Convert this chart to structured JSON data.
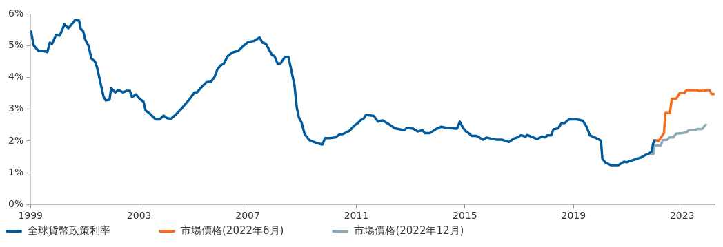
{
  "chart_data": {
    "type": "line",
    "xlim": [
      1999,
      2024.2
    ],
    "xticks": [
      1999,
      2003,
      2007,
      2011,
      2015,
      2019,
      2023
    ],
    "ylim": [
      0,
      6
    ],
    "yticks": [
      {
        "value": 0,
        "label": "0%"
      },
      {
        "value": 1,
        "label": "1%"
      },
      {
        "value": 2,
        "label": "2%"
      },
      {
        "value": 3,
        "label": "3%"
      },
      {
        "value": 4,
        "label": "4%"
      },
      {
        "value": 5,
        "label": "5%"
      },
      {
        "value": 6,
        "label": "6%"
      }
    ],
    "grid": false,
    "legend": "bottom",
    "marker": "none",
    "line_style": "solid",
    "series": [
      {
        "name": "全球貨幣政策利率",
        "color": "#005a9c",
        "x": [
          1999.02,
          1999.12,
          1999.29,
          1999.45,
          1999.62,
          1999.71,
          1999.79,
          1999.94,
          2000.08,
          2000.25,
          2000.39,
          2000.58,
          2000.64,
          2000.79,
          2000.85,
          2000.94,
          2001.02,
          2001.14,
          2001.24,
          2001.37,
          2001.45,
          2001.69,
          2001.77,
          2001.91,
          2001.97,
          2002.12,
          2002.24,
          2002.41,
          2002.53,
          2002.66,
          2002.74,
          2002.88,
          2003.02,
          2003.16,
          2003.24,
          2003.41,
          2003.61,
          2003.76,
          2003.9,
          2004.03,
          2004.18,
          2004.36,
          2004.53,
          2004.69,
          2004.86,
          2005.04,
          2005.13,
          2005.28,
          2005.48,
          2005.65,
          2005.78,
          2005.88,
          2006.01,
          2006.12,
          2006.26,
          2006.44,
          2006.65,
          2006.86,
          2007.02,
          2007.23,
          2007.44,
          2007.54,
          2007.67,
          2007.9,
          2007.98,
          2008.1,
          2008.21,
          2008.37,
          2008.5,
          2008.72,
          2008.81,
          2008.89,
          2008.98,
          2009.1,
          2009.27,
          2009.52,
          2009.75,
          2009.85,
          2010.02,
          2010.22,
          2010.39,
          2010.51,
          2010.75,
          2010.93,
          2011.05,
          2011.16,
          2011.26,
          2011.36,
          2011.64,
          2011.8,
          2011.97,
          2012.22,
          2012.42,
          2012.76,
          2012.86,
          2013.09,
          2013.26,
          2013.44,
          2013.52,
          2013.71,
          2013.92,
          2014.13,
          2014.34,
          2014.71,
          2014.81,
          2014.92,
          2015.04,
          2015.09,
          2015.25,
          2015.42,
          2015.67,
          2015.79,
          2016.16,
          2016.37,
          2016.62,
          2016.79,
          2016.96,
          2017.06,
          2017.24,
          2017.29,
          2017.66,
          2017.83,
          2017.95,
          2018.04,
          2018.18,
          2018.26,
          2018.43,
          2018.56,
          2018.68,
          2018.83,
          2019.12,
          2019.34,
          2019.48,
          2019.6,
          2019.91,
          2020.01,
          2020.06,
          2020.16,
          2020.37,
          2020.65,
          2020.86,
          2020.95,
          2021.19,
          2021.48,
          2021.65,
          2021.77,
          2021.87,
          2021.94,
          2021.98
        ],
        "values": [
          5.45,
          5.01,
          4.84,
          4.84,
          4.8,
          5.1,
          5.05,
          5.34,
          5.32,
          5.68,
          5.55,
          5.74,
          5.81,
          5.79,
          5.53,
          5.46,
          5.19,
          4.99,
          4.6,
          4.51,
          4.32,
          3.4,
          3.28,
          3.3,
          3.67,
          3.53,
          3.61,
          3.53,
          3.58,
          3.58,
          3.38,
          3.47,
          3.33,
          3.24,
          2.96,
          2.85,
          2.68,
          2.68,
          2.8,
          2.72,
          2.7,
          2.84,
          2.99,
          3.15,
          3.32,
          3.53,
          3.53,
          3.68,
          3.85,
          3.87,
          4.02,
          4.25,
          4.39,
          4.44,
          4.67,
          4.79,
          4.84,
          5.01,
          5.12,
          5.15,
          5.26,
          5.1,
          5.06,
          4.7,
          4.68,
          4.44,
          4.44,
          4.65,
          4.65,
          3.77,
          3.04,
          2.73,
          2.59,
          2.21,
          2.03,
          1.94,
          1.89,
          2.09,
          2.09,
          2.11,
          2.21,
          2.22,
          2.32,
          2.49,
          2.56,
          2.66,
          2.7,
          2.82,
          2.79,
          2.61,
          2.65,
          2.52,
          2.4,
          2.34,
          2.41,
          2.39,
          2.3,
          2.34,
          2.25,
          2.25,
          2.37,
          2.45,
          2.41,
          2.39,
          2.61,
          2.43,
          2.3,
          2.28,
          2.16,
          2.16,
          2.04,
          2.11,
          2.04,
          2.04,
          1.97,
          2.07,
          2.12,
          2.18,
          2.14,
          2.19,
          2.06,
          2.14,
          2.11,
          2.18,
          2.18,
          2.37,
          2.4,
          2.56,
          2.57,
          2.68,
          2.68,
          2.64,
          2.45,
          2.18,
          2.06,
          2.01,
          1.45,
          1.33,
          1.24,
          1.24,
          1.35,
          1.33,
          1.4,
          1.48,
          1.56,
          1.6,
          1.66,
          1.94,
          2.02
        ]
      },
      {
        "name": "市場價格(2022年6月)",
        "color": "#f26b21",
        "x": [
          2021.98,
          2022.11,
          2022.13,
          2022.33,
          2022.38,
          2022.55,
          2022.62,
          2022.78,
          2022.91,
          2023.08,
          2023.16,
          2023.57,
          2023.62,
          2023.83,
          2023.87,
          2024.01,
          2024.09,
          2024.17
        ],
        "values": [
          2.02,
          2.02,
          2.0,
          2.25,
          2.88,
          2.88,
          3.33,
          3.33,
          3.51,
          3.51,
          3.6,
          3.6,
          3.58,
          3.58,
          3.61,
          3.6,
          3.48,
          3.48
        ]
      },
      {
        "name": "市場價格(2022年12月)",
        "color": "#8eaab9",
        "x": [
          2021.86,
          2021.94,
          2021.98,
          2022.21,
          2022.29,
          2022.43,
          2022.53,
          2022.67,
          2022.78,
          2022.93,
          2023.08,
          2023.16,
          2023.24,
          2023.49,
          2023.57,
          2023.74,
          2023.83,
          2023.87
        ],
        "values": [
          1.58,
          1.58,
          1.85,
          1.85,
          2.03,
          2.03,
          2.11,
          2.11,
          2.23,
          2.24,
          2.26,
          2.27,
          2.34,
          2.35,
          2.38,
          2.38,
          2.48,
          2.51
        ]
      }
    ]
  }
}
